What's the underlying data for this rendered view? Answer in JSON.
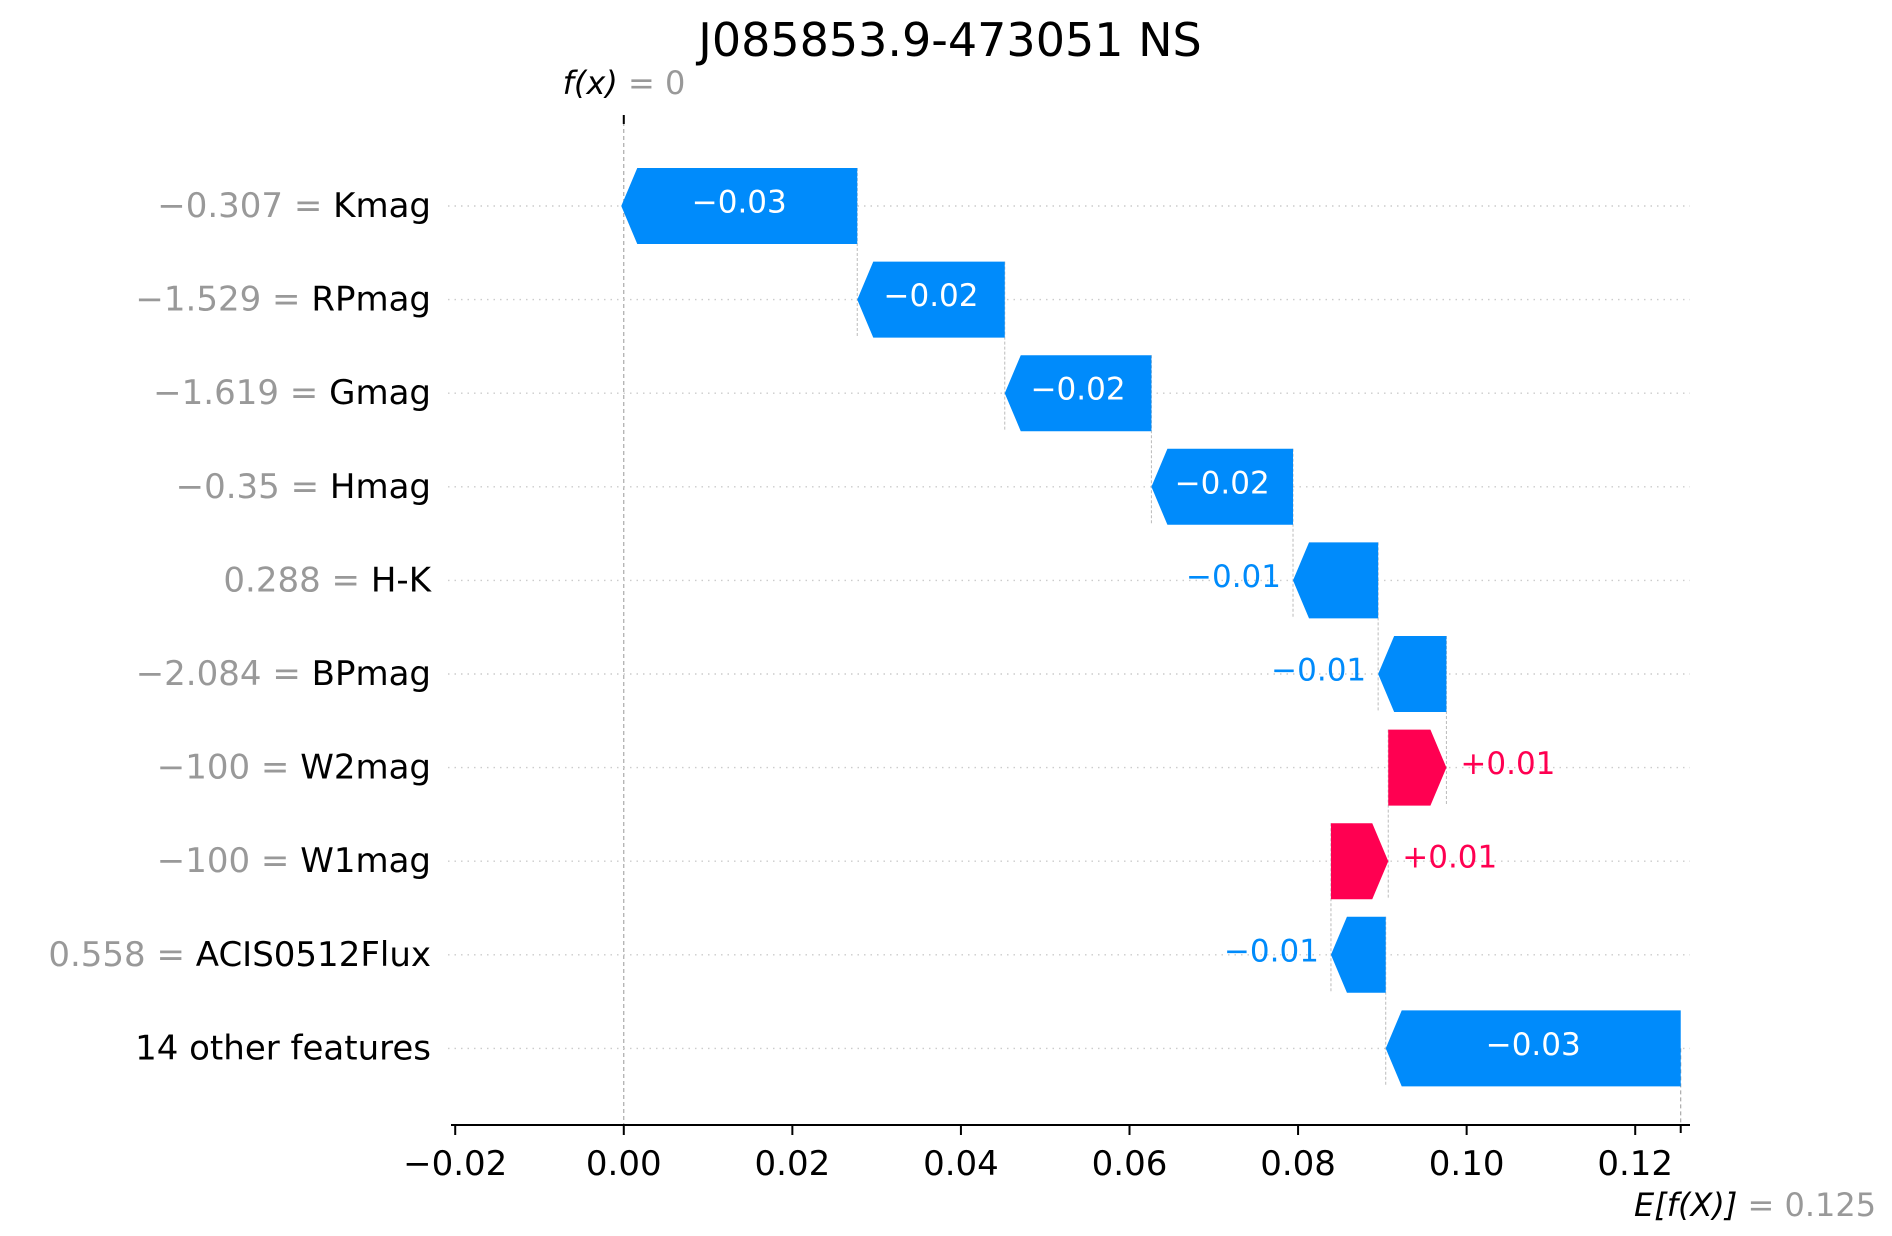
{
  "chart_data": {
    "type": "waterfall",
    "title": "J085853.9-473051 NS",
    "fx_label": "f(x)",
    "fx_value": "0",
    "fx": 0.0,
    "efx_label": "E[f(X)]",
    "efx_value": "0.125",
    "efx": 0.1254,
    "xlim": [
      -0.0205,
      0.1265
    ],
    "xticks": [
      -0.02,
      0.0,
      0.02,
      0.04,
      0.06,
      0.08,
      0.1,
      0.12
    ],
    "xtick_labels": [
      "−0.02",
      "0.00",
      "0.02",
      "0.04",
      "0.06",
      "0.08",
      "0.10",
      "0.12"
    ],
    "colors": {
      "negative": "#008bfb",
      "positive": "#ff0051",
      "axis": "#000000",
      "muted": "#999999",
      "grid": "#cccccc"
    },
    "features": [
      {
        "value": "−0.307",
        "name": "Kmag",
        "shap": -0.028,
        "label": "−0.03",
        "label_inside": true
      },
      {
        "value": "−1.529",
        "name": "RPmag",
        "shap": -0.0175,
        "label": "−0.02",
        "label_inside": true
      },
      {
        "value": "−1.619",
        "name": "Gmag",
        "shap": -0.0174,
        "label": "−0.02",
        "label_inside": true
      },
      {
        "value": "−0.35",
        "name": "Hmag",
        "shap": -0.0168,
        "label": "−0.02",
        "label_inside": true
      },
      {
        "value": "0.288",
        "name": "H-K",
        "shap": -0.0101,
        "label": "−0.01",
        "label_inside": false
      },
      {
        "value": "−2.084",
        "name": "BPmag",
        "shap": -0.0081,
        "label": "−0.01",
        "label_inside": false
      },
      {
        "value": "−100",
        "name": "W2mag",
        "shap": 0.0069,
        "label": "+0.01",
        "label_inside": false
      },
      {
        "value": "−100",
        "name": "W1mag",
        "shap": 0.0068,
        "label": "+0.01",
        "label_inside": false
      },
      {
        "value": "0.558",
        "name": "ACIS0512Flux",
        "shap": -0.0065,
        "label": "−0.01",
        "label_inside": false
      },
      {
        "value": "",
        "name": "14 other features",
        "shap": -0.035,
        "label": "−0.03",
        "label_inside": true
      }
    ]
  }
}
